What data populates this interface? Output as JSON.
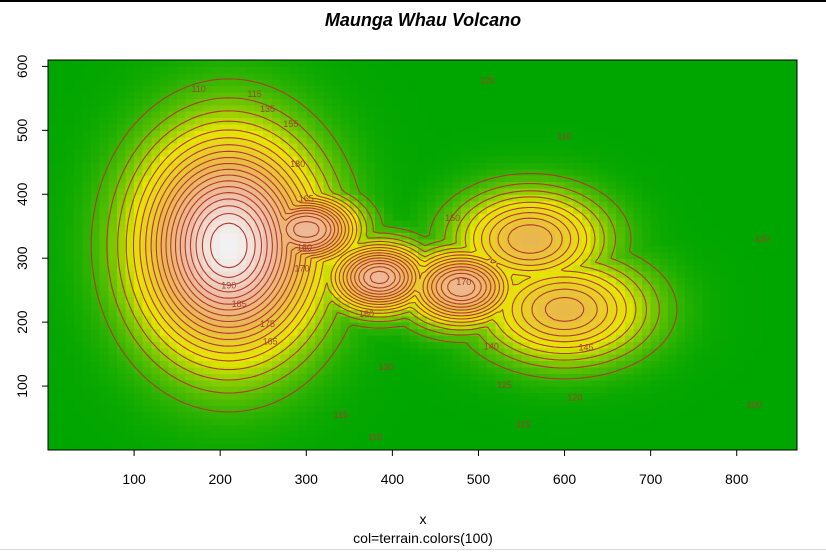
{
  "chart_data": {
    "type": "heatmap",
    "title": "Maunga Whau Volcano",
    "xlabel": "x",
    "sublabel": "col=terrain.colors(100)",
    "ylabel": "",
    "xlim": [
      0,
      870
    ],
    "ylim": [
      0,
      610
    ],
    "x_ticks": [
      100,
      200,
      300,
      400,
      500,
      600,
      700,
      800
    ],
    "y_ticks": [
      100,
      200,
      300,
      400,
      500,
      600
    ],
    "grid": false,
    "legend": "none",
    "z_range": [
      94,
      195
    ],
    "palette": "terrain.colors(100)",
    "palette_stops": [
      "#00a600",
      "#e6e600",
      "#eab64e",
      "#eeb99f",
      "#f2f2f2"
    ],
    "contour_color": "#b03a2e",
    "contour_levels": [
      100,
      105,
      110,
      115,
      120,
      125,
      130,
      135,
      140,
      145,
      150,
      155,
      160,
      165,
      170,
      175,
      180,
      185,
      190
    ],
    "contour_labels": [
      {
        "text": "110",
        "x": 175,
        "y": 565
      },
      {
        "text": "115",
        "x": 240,
        "y": 557
      },
      {
        "text": "120",
        "x": 510,
        "y": 578
      },
      {
        "text": "110",
        "x": 600,
        "y": 490
      },
      {
        "text": "135",
        "x": 255,
        "y": 533
      },
      {
        "text": "155",
        "x": 282,
        "y": 510
      },
      {
        "text": "180",
        "x": 290,
        "y": 447
      },
      {
        "text": "165",
        "x": 300,
        "y": 393
      },
      {
        "text": "150",
        "x": 470,
        "y": 363
      },
      {
        "text": "160",
        "x": 298,
        "y": 317
      },
      {
        "text": "170",
        "x": 295,
        "y": 284
      },
      {
        "text": "170",
        "x": 483,
        "y": 263
      },
      {
        "text": "190",
        "x": 210,
        "y": 257
      },
      {
        "text": "185",
        "x": 222,
        "y": 228
      },
      {
        "text": "160",
        "x": 370,
        "y": 213
      },
      {
        "text": "175",
        "x": 255,
        "y": 197
      },
      {
        "text": "165",
        "x": 258,
        "y": 170
      },
      {
        "text": "145",
        "x": 625,
        "y": 160
      },
      {
        "text": "140",
        "x": 515,
        "y": 162
      },
      {
        "text": "130",
        "x": 393,
        "y": 130
      },
      {
        "text": "125",
        "x": 530,
        "y": 102
      },
      {
        "text": "120",
        "x": 612,
        "y": 82
      },
      {
        "text": "115",
        "x": 340,
        "y": 55
      },
      {
        "text": "115",
        "x": 552,
        "y": 40
      },
      {
        "text": "110",
        "x": 380,
        "y": 20
      },
      {
        "text": "120",
        "x": 830,
        "y": 330
      },
      {
        "text": "100",
        "x": 820,
        "y": 70
      }
    ],
    "peaks": [
      {
        "x": 210,
        "y": 320,
        "h": 195,
        "sx": 95,
        "sy": 155
      },
      {
        "x": 300,
        "y": 345,
        "h": 175,
        "sx": 55,
        "sy": 50
      },
      {
        "x": 385,
        "y": 270,
        "h": 168,
        "sx": 55,
        "sy": 50
      },
      {
        "x": 480,
        "y": 255,
        "h": 165,
        "sx": 60,
        "sy": 55
      },
      {
        "x": 600,
        "y": 220,
        "h": 143,
        "sx": 90,
        "sy": 75
      },
      {
        "x": 560,
        "y": 330,
        "h": 145,
        "sx": 80,
        "sy": 70
      }
    ]
  }
}
